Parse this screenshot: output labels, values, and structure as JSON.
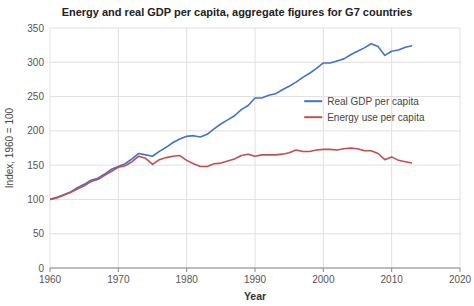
{
  "chart_data": {
    "type": "line",
    "title": "Energy and real GDP per capita, aggregate figures for G7 countries",
    "xlabel": "Year",
    "ylabel": "Index, 1960 = 100",
    "x": [
      1960,
      1961,
      1962,
      1963,
      1964,
      1965,
      1966,
      1967,
      1968,
      1969,
      1970,
      1971,
      1972,
      1973,
      1974,
      1975,
      1976,
      1977,
      1978,
      1979,
      1980,
      1981,
      1982,
      1983,
      1984,
      1985,
      1986,
      1987,
      1988,
      1989,
      1990,
      1991,
      1992,
      1993,
      1994,
      1995,
      1996,
      1997,
      1998,
      1999,
      2000,
      2001,
      2002,
      2003,
      2004,
      2005,
      2006,
      2007,
      2008,
      2009,
      2010,
      2011,
      2012,
      2013
    ],
    "series": [
      {
        "name": "Real GDP per capita",
        "color": "#4472C4",
        "values": [
          100,
          103,
          107,
          111,
          117,
          122,
          128,
          131,
          137,
          144,
          148,
          152,
          159,
          167,
          165,
          163,
          170,
          176,
          183,
          188,
          192,
          193,
          191,
          195,
          203,
          210,
          216,
          222,
          231,
          237,
          248,
          248,
          252,
          254,
          260,
          265,
          271,
          278,
          284,
          291,
          299,
          299,
          302,
          305,
          311,
          316,
          321,
          327,
          323,
          310,
          316,
          318,
          322,
          324
        ]
      },
      {
        "name": "Energy use per capita",
        "color": "#C0504D",
        "values": [
          100,
          102,
          106,
          110,
          115,
          120,
          126,
          129,
          135,
          141,
          147,
          149,
          155,
          163,
          160,
          151,
          158,
          161,
          163,
          164,
          157,
          152,
          148,
          148,
          152,
          153,
          156,
          159,
          164,
          166,
          163,
          165,
          165,
          165,
          166,
          168,
          172,
          170,
          170,
          172,
          173,
          173,
          172,
          174,
          175,
          174,
          171,
          171,
          167,
          158,
          162,
          157,
          155,
          153
        ]
      }
    ],
    "xlim": [
      1960,
      2020
    ],
    "ylim": [
      0,
      350
    ],
    "xticks": [
      1960,
      1970,
      1980,
      1990,
      2000,
      2010,
      2020
    ],
    "yticks": [
      0,
      50,
      100,
      150,
      200,
      250,
      300,
      350
    ],
    "grid": true,
    "legend": "center right"
  }
}
